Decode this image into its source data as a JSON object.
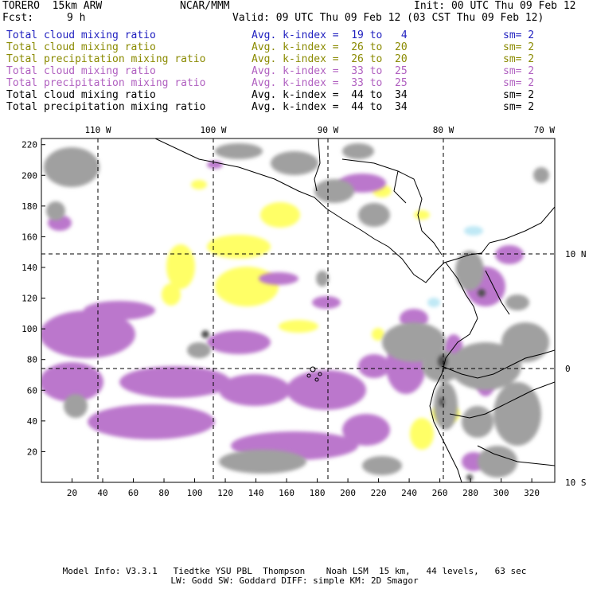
{
  "header": {
    "model": "TORERO  15km ARW",
    "center": "NCAR/MMM",
    "init": "Init: 00 UTC Thu 09 Feb 12",
    "fcst_label": "Fcst:",
    "fcst_value": "9 h",
    "valid": "Valid: 09 UTC Thu 09 Feb 12 (03 CST Thu 09 Feb 12)"
  },
  "legend": [
    {
      "field": "Total cloud mixing ratio",
      "kindex": "Avg. k-index =  19 to   4",
      "sm": "sm= 2",
      "color": "#1f1fbf"
    },
    {
      "field": "Total cloud mixing ratio",
      "kindex": "Avg. k-index =  26 to  20",
      "sm": "sm= 2",
      "color": "#8a8a00"
    },
    {
      "field": "Total precipitation mixing ratio",
      "kindex": "Avg. k-index =  26 to  20",
      "sm": "sm= 2",
      "color": "#8a8a00"
    },
    {
      "field": "Total cloud mixing ratio",
      "kindex": "Avg. k-index =  33 to  25",
      "sm": "sm= 2",
      "color": "#b060c0"
    },
    {
      "field": "Total precipitation mixing ratio",
      "kindex": "Avg. k-index =  33 to  25",
      "sm": "sm= 2",
      "color": "#b060c0"
    },
    {
      "field": "Total cloud mixing ratio",
      "kindex": "Avg. k-index =  44 to  34",
      "sm": "sm= 2",
      "color": "#000000"
    },
    {
      "field": "Total precipitation mixing ratio",
      "kindex": "Avg. k-index =  44 to  34",
      "sm": "sm= 2",
      "color": "#000000"
    }
  ],
  "map": {
    "lon_labels": [
      "110 W",
      "100 W",
      "90 W",
      "80 W",
      "70 W"
    ],
    "lat_labels": [
      "10 N",
      "0",
      "10 S"
    ],
    "x_ticks": [
      "20",
      "40",
      "60",
      "80",
      "100",
      "120",
      "140",
      "160",
      "180",
      "200",
      "220",
      "240",
      "260",
      "280",
      "300",
      "320"
    ],
    "y_ticks": [
      "220",
      "200",
      "180",
      "160",
      "140",
      "120",
      "100",
      "80",
      "60",
      "40",
      "20"
    ],
    "colors": {
      "gray": "#a0a0a0",
      "dark": "#505050",
      "yellow": "#ffff66",
      "purple": "#bb77cc",
      "cyan": "#bfe8f5"
    }
  },
  "footer": {
    "line1": "Model Info: V3.3.1   Tiedtke YSU PBL  Thompson    Noah LSM  15 km,   44 levels,   63 sec",
    "line2": "LW: Godd SW: Goddard DIFF: simple KM: 2D Smagor"
  }
}
